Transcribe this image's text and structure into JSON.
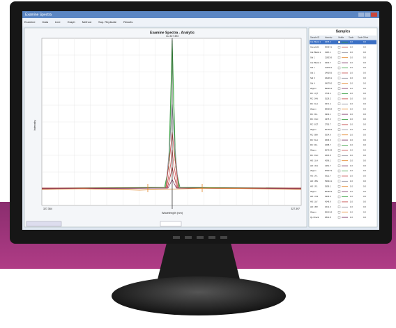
{
  "window": {
    "title": "Examine Spectra",
    "menu": [
      "Examine",
      "Data",
      "Line",
      "Graph",
      "Method",
      "Sup. Replicate",
      "Results"
    ]
  },
  "chart": {
    "title": "Examine Spectra - Analytic",
    "subtitle": "Cu 327.393",
    "y_label": "Intensity",
    "x_label": "Wavelength (nm)",
    "x_start": "327.384",
    "x_end": "327.397"
  },
  "samples": {
    "title": "Samples",
    "columns": [
      "Sample ID",
      "Intensity",
      "Visible",
      "Scale",
      "Scale Offset"
    ],
    "rows": [
      [
        "Cal. Blank 1",
        "2935.2",
        "1.0",
        "0.0"
      ],
      [
        "Sample01",
        "90054.1",
        "1.0",
        "0.0"
      ],
      [
        "Cal. Blank 1",
        "3115.1",
        "1.0",
        "0.0"
      ],
      [
        "Std 1",
        "21823.6",
        "1.0",
        "0.0"
      ],
      [
        "Cal. Blank 1",
        "2930.7",
        "1.0",
        "0.0"
      ],
      [
        "Std 1",
        "11979.3",
        "1.0",
        "0.0"
      ],
      [
        "Std 2",
        "24629.5",
        "1.0",
        "0.0"
      ],
      [
        "Std 3",
        "46229.1",
        "1.0",
        "0.0"
      ],
      [
        "Std 4",
        "94079.0",
        "1.0",
        "0.0"
      ],
      [
        "20ppm",
        "89029.4",
        "1.0",
        "0.0"
      ],
      [
        "RC 1 QT",
        "3746.4",
        "1.0",
        "0.0"
      ],
      [
        "RC 2 AN",
        "5129.2",
        "1.0",
        "0.0"
      ],
      [
        "RC 3 LH",
        "4571.4",
        "1.0",
        "0.0"
      ],
      [
        "20ppm",
        "88056.8",
        "1.0",
        "0.0"
      ],
      [
        "RC 3 FL",
        "4932.1",
        "1.0",
        "0.0"
      ],
      [
        "RC 2 GC",
        "4375.3",
        "1.0",
        "0.0"
      ],
      [
        "RC 5 QT",
        "2755.7",
        "1.0",
        "0.0"
      ],
      [
        "20ppm",
        "90749.2",
        "1.0",
        "0.0"
      ],
      [
        "RC 3 BA",
        "3034.9",
        "1.0",
        "0.0"
      ],
      [
        "RC 5 LH",
        "3636.6",
        "1.0",
        "0.0"
      ],
      [
        "RC 6 FL",
        "4098.7",
        "1.0",
        "0.0"
      ],
      [
        "20ppm",
        "86754.8",
        "1.0",
        "0.0"
      ],
      [
        "RC 3 GC",
        "4615.8",
        "1.0",
        "0.0"
      ],
      [
        "HD 1 LH",
        "4296.1",
        "1.0",
        "0.0"
      ],
      [
        "HD 1 FH",
        "4461.7",
        "1.0",
        "0.0"
      ],
      [
        "20ppm",
        "87607.9",
        "1.0",
        "0.0"
      ],
      [
        "HD 1 FL",
        "3621.7",
        "1.0",
        "0.0"
      ],
      [
        "HD 1 BS",
        "53944.1",
        "1.0",
        "0.0"
      ],
      [
        "HD 1 FL",
        "3659.1",
        "1.0",
        "0.0"
      ],
      [
        "20ppm",
        "86330.9",
        "1.0",
        "0.0"
      ],
      [
        "HD 1 GS",
        "3936.0",
        "1.0",
        "0.0"
      ],
      [
        "HD 1 LV",
        "4249.9",
        "1.0",
        "0.0"
      ],
      [
        "HD 1 BV",
        "4041.3",
        "1.0",
        "0.0"
      ],
      [
        "20ppm",
        "85101.8",
        "1.0",
        "0.0"
      ],
      [
        "QL Check",
        "3814.8",
        "1.0",
        "0.0"
      ]
    ]
  }
}
